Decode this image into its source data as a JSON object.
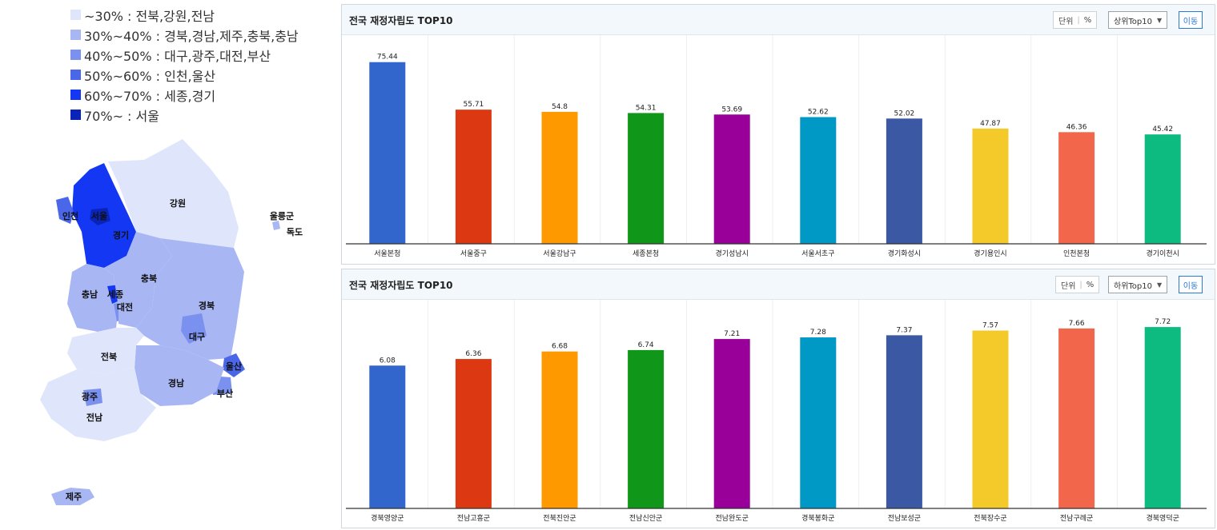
{
  "legend": [
    {
      "label": "~30% : 전북,강원,전남",
      "color": "#dfe6fb"
    },
    {
      "label": "30%~40% : 경북,경남,제주,충북,충남",
      "color": "#a8b7f3"
    },
    {
      "label": "40%~50% : 대구,광주,대전,부산",
      "color": "#7b91ef"
    },
    {
      "label": "50%~60% : 인천,울산",
      "color": "#4a67ea"
    },
    {
      "label": "60%~70% : 세종,경기",
      "color": "#1337f2"
    },
    {
      "label": "70%~ : 서울",
      "color": "#0a23b8"
    }
  ],
  "map_labels": [
    "강원",
    "인천",
    "서울",
    "경기",
    "울릉군",
    "독도",
    "충북",
    "충남",
    "세종",
    "대전",
    "경북",
    "대구",
    "전북",
    "울산",
    "경남",
    "부산",
    "광주",
    "전남",
    "제주"
  ],
  "panels": {
    "top": {
      "title": "전국 재정자립도 TOP10",
      "unit_label": "단위",
      "unit_value": "%",
      "select_value": "상위Top10",
      "go_label": "이동"
    },
    "bottom": {
      "title": "전국 재정자립도 TOP10",
      "unit_label": "단위",
      "unit_value": "%",
      "select_value": "하위Top10",
      "go_label": "이동"
    }
  },
  "chart_data": [
    {
      "type": "bar",
      "title": "전국 재정자립도 TOP10",
      "categories": [
        "서울본청",
        "서울중구",
        "서울강남구",
        "세종본청",
        "경기성남시",
        "서울서초구",
        "경기화성시",
        "경기용인시",
        "인천본청",
        "경기이천시"
      ],
      "values": [
        75.44,
        55.71,
        54.8,
        54.31,
        53.69,
        52.62,
        52.02,
        47.87,
        46.36,
        45.42
      ],
      "colors": [
        "#3366cc",
        "#dc3912",
        "#ff9900",
        "#109618",
        "#990099",
        "#0099c6",
        "#3b58a4",
        "#f4c92a",
        "#f2664c",
        "#0dbb80"
      ],
      "ylim": [
        0,
        80
      ]
    },
    {
      "type": "bar",
      "title": "전국 재정자립도 TOP10",
      "categories": [
        "경북영양군",
        "전남고흥군",
        "전북진안군",
        "전남신안군",
        "전남완도군",
        "경북봉화군",
        "전남보성군",
        "전북장수군",
        "전남구례군",
        "경북영덕군"
      ],
      "values": [
        6.08,
        6.36,
        6.68,
        6.74,
        7.21,
        7.28,
        7.37,
        7.57,
        7.66,
        7.72
      ],
      "colors": [
        "#3366cc",
        "#dc3912",
        "#ff9900",
        "#109618",
        "#990099",
        "#0099c6",
        "#3b58a4",
        "#f4c92a",
        "#f2664c",
        "#0dbb80"
      ],
      "ylim": [
        0,
        8.2
      ]
    }
  ]
}
